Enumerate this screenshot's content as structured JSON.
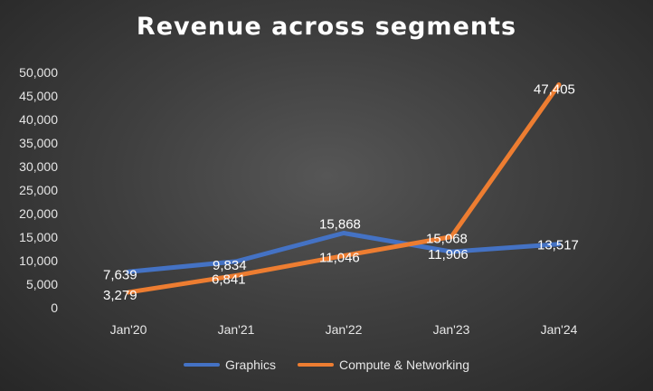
{
  "chart_data": {
    "type": "line",
    "title": "Revenue across segments",
    "categories": [
      "Jan'20",
      "Jan'21",
      "Jan'22",
      "Jan'23",
      "Jan'24"
    ],
    "series": [
      {
        "name": "Graphics",
        "values": [
          7639,
          9834,
          15868,
          11906,
          13517
        ],
        "labels": [
          "7,639",
          "9,834",
          "15,868",
          "11,906",
          "13,517"
        ],
        "color": "#4472C4"
      },
      {
        "name": "Compute & Networking",
        "values": [
          3279,
          6841,
          11046,
          15068,
          47405
        ],
        "labels": [
          "3,279",
          "6,841",
          "11,046",
          "15,068",
          "47,405"
        ],
        "color": "#ED7D31"
      }
    ],
    "ylim": [
      0,
      50000
    ],
    "yticks": [
      0,
      5000,
      10000,
      15000,
      20000,
      25000,
      30000,
      35000,
      40000,
      45000,
      50000
    ],
    "ytick_labels": [
      "0",
      "5,000",
      "10,000",
      "15,000",
      "20,000",
      "25,000",
      "30,000",
      "35,000",
      "40,000",
      "45,000",
      "50,000"
    ],
    "xlabel": "",
    "ylabel": "",
    "grid": false,
    "legend": "bottom"
  }
}
